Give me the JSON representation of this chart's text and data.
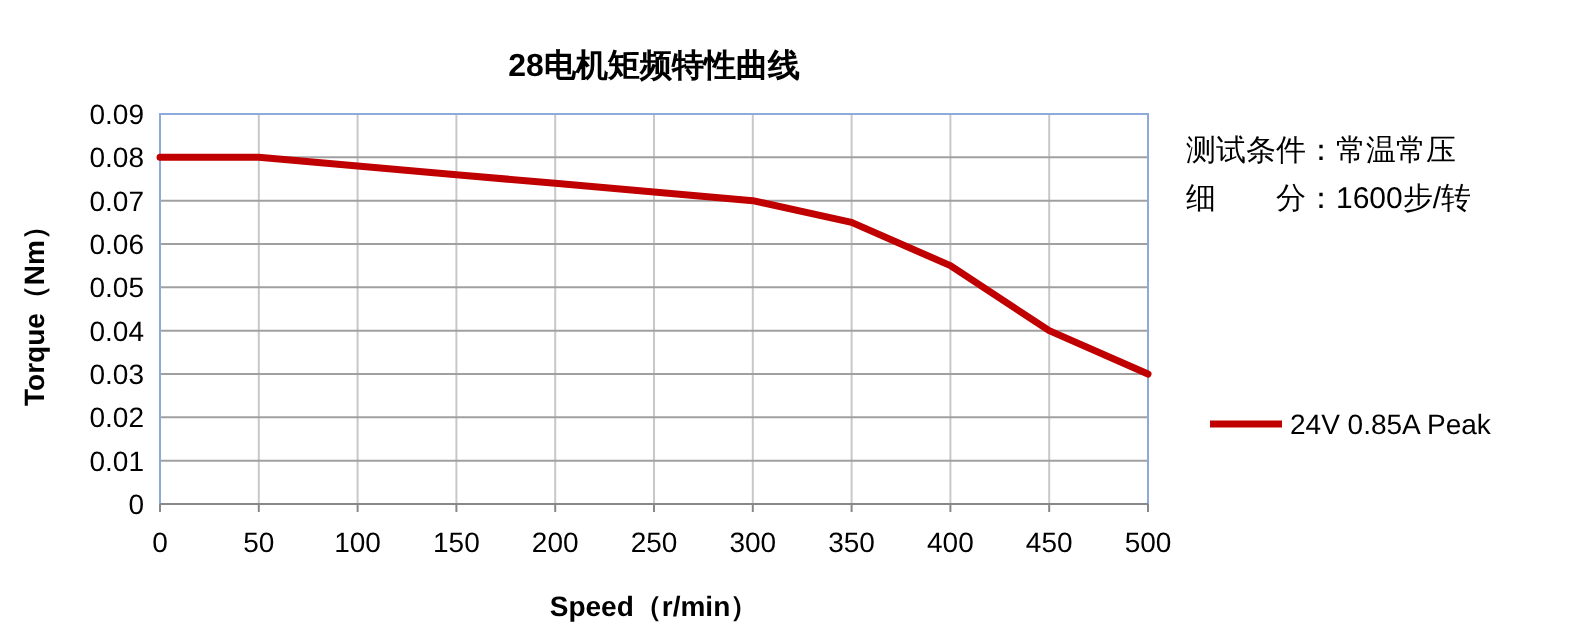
{
  "chart_data": {
    "type": "line",
    "title": "28电机矩频特性曲线",
    "xlabel": "Speed（r/min）",
    "ylabel": "Torque（Nm）",
    "x": [
      0,
      50,
      100,
      150,
      200,
      250,
      300,
      350,
      400,
      450,
      500
    ],
    "series": [
      {
        "name": "24V 0.85A Peak",
        "color": "#c00000",
        "values": [
          0.08,
          0.08,
          0.078,
          0.076,
          0.074,
          0.072,
          0.07,
          0.065,
          0.055,
          0.04,
          0.03
        ]
      }
    ],
    "xlim": [
      0,
      500
    ],
    "xticks": [
      0,
      50,
      100,
      150,
      200,
      250,
      300,
      350,
      400,
      450,
      500
    ],
    "ylim": [
      0,
      0.09
    ],
    "yticks": [
      0,
      0.01,
      0.02,
      0.03,
      0.04,
      0.05,
      0.06,
      0.07,
      0.08,
      0.09
    ],
    "grid": true,
    "legend": "right",
    "marker": "none",
    "line_style": "solid",
    "annotations": [
      "测试条件：常温常压",
      "细　　分：1600步/转"
    ]
  }
}
